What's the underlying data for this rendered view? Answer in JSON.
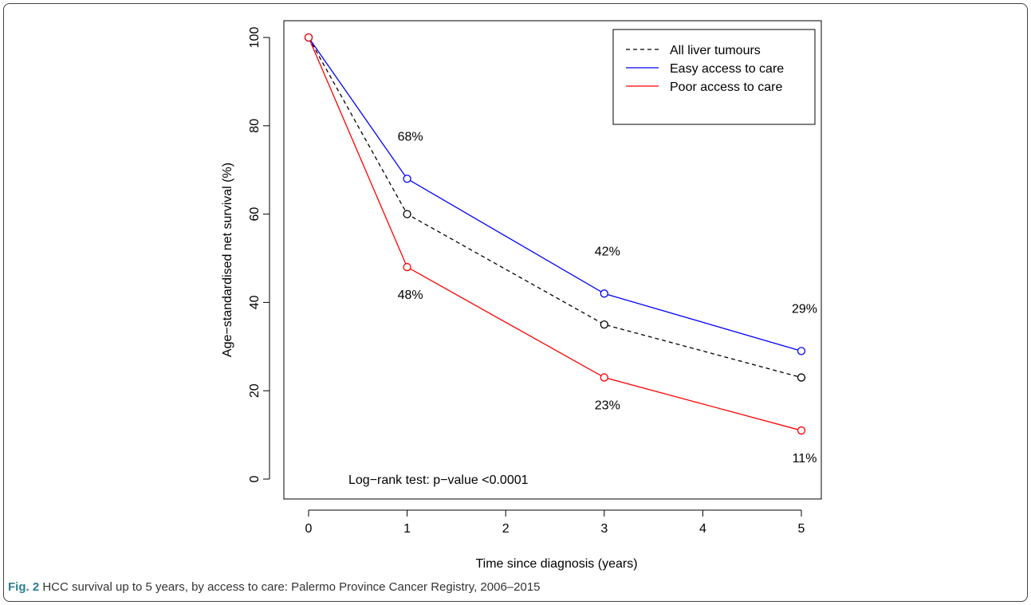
{
  "figure": {
    "label": "Fig. 2",
    "caption": "HCC survival up to 5 years, by access to care: Palermo Province Cancer Registry, 2006–2015"
  },
  "chart_data": {
    "type": "line",
    "xlabel": "Time since diagnosis (years)",
    "ylabel": "Age−standardised net survival (%)",
    "xlim": [
      0,
      5
    ],
    "ylim": [
      0,
      100
    ],
    "xticks": [
      0,
      1,
      2,
      3,
      4,
      5
    ],
    "yticks": [
      0,
      20,
      40,
      60,
      80,
      100
    ],
    "grid": false,
    "legend_position": "top-right",
    "annotation": "Log−rank test: p−value <0.0001",
    "series": [
      {
        "name": "All liver tumours",
        "color": "#000000",
        "dash": true,
        "x": [
          0,
          1,
          3,
          5
        ],
        "y": [
          100,
          60,
          35,
          23
        ],
        "labels": [
          "",
          "",
          "",
          ""
        ]
      },
      {
        "name": "Easy access to care",
        "color": "#0000ff",
        "dash": false,
        "x": [
          0,
          1,
          3,
          5
        ],
        "y": [
          100,
          68,
          42,
          29
        ],
        "labels": [
          "",
          "68%",
          "42%",
          "29%"
        ]
      },
      {
        "name": "Poor access to care",
        "color": "#ff0000",
        "dash": false,
        "x": [
          0,
          1,
          3,
          5
        ],
        "y": [
          100,
          48,
          23,
          11
        ],
        "labels": [
          "",
          "48%",
          "23%",
          "11%"
        ]
      }
    ]
  }
}
